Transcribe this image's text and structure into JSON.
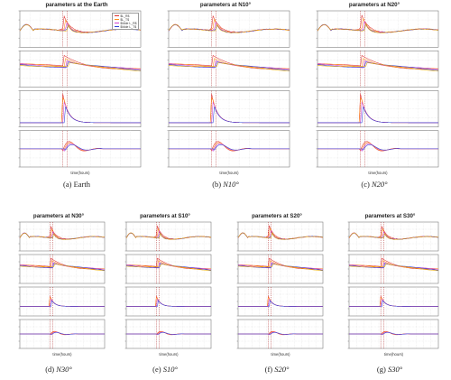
{
  "colors": {
    "series": [
      "#e03030",
      "#ff8c1a",
      "#d040d0",
      "#2a3fd8",
      "#e8a800",
      "#7a4a00"
    ],
    "dashed_marker": "#b03030",
    "grid": "#cfcfcf",
    "frame": "#666666"
  },
  "chart_data": [
    {
      "type": "line",
      "title": "parameters at the Earth",
      "caption": {
        "label": "(a)",
        "name": "Earth"
      },
      "xlabel": "time(hours)",
      "series": [
        {
          "name": "$L_R$"
        },
        {
          "name": "$L_T$"
        },
        {
          "name": "$\\tilde L_R$"
        },
        {
          "name": "$\\tilde L_T$"
        }
      ]
    },
    {
      "type": "line",
      "title": "parameters at N10°",
      "caption": {
        "label": "(b)",
        "name": "N10°"
      },
      "xlabel": "time(hours)"
    },
    {
      "type": "line",
      "title": "parameters at N20°",
      "caption": {
        "label": "(c)",
        "name": "N20°"
      },
      "xlabel": "time(hours)"
    },
    {
      "type": "line",
      "title": "parameters at N30°",
      "caption": {
        "label": "(d)",
        "name": "N30°"
      },
      "xlabel": "time(hours)"
    },
    {
      "type": "line",
      "title": "parameters at S10°",
      "caption": {
        "label": "(e)",
        "name": "S10°"
      },
      "xlabel": "time(hours)"
    },
    {
      "type": "line",
      "title": "parameters at S20°",
      "caption": {
        "label": "(f)",
        "name": "S20°"
      },
      "xlabel": "time(hours)"
    },
    {
      "type": "line",
      "title": "parameters at S30°",
      "caption": {
        "label": "(g)",
        "name": "S30°"
      },
      "xlabel": "time(hours)"
    }
  ]
}
